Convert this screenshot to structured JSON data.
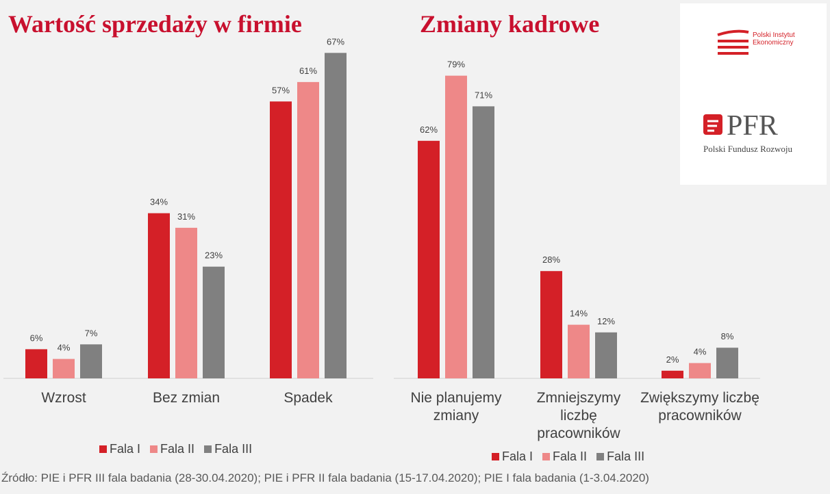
{
  "chart_data": [
    {
      "type": "bar",
      "title": "Wartość sprzedaży w firmie",
      "categories": [
        "Wzrost",
        "Bez zmian",
        "Spadek"
      ],
      "series": [
        {
          "name": "Fala I",
          "color": "#d42027",
          "values": [
            6,
            34,
            57
          ],
          "value_labels": [
            "6%",
            "34%",
            "57%"
          ]
        },
        {
          "name": "Fala II",
          "color": "#ee8888",
          "values": [
            4,
            31,
            61
          ],
          "value_labels": [
            "4%",
            "31%",
            "61%"
          ]
        },
        {
          "name": "Fala III",
          "color": "#808080",
          "values": [
            7,
            23,
            67
          ],
          "value_labels": [
            "7%",
            "23%",
            "67%"
          ]
        }
      ]
    },
    {
      "type": "bar",
      "title": "Zmiany kadrowe",
      "categories": [
        "Nie planujemy zmiany",
        "Zmniejszymy liczbę pracowników",
        "Zwiększymy liczbę pracowników"
      ],
      "series": [
        {
          "name": "Fala I",
          "color": "#d42027",
          "values": [
            62,
            28,
            2
          ],
          "value_labels": [
            "62%",
            "28%",
            "2%"
          ]
        },
        {
          "name": "Fala II",
          "color": "#ee8888",
          "values": [
            79,
            14,
            4
          ],
          "value_labels": [
            "79%",
            "14%",
            "4%"
          ]
        },
        {
          "name": "Fala III",
          "color": "#808080",
          "values": [
            71,
            12,
            8
          ],
          "value_labels": [
            "71%",
            "12%",
            "8%"
          ]
        }
      ]
    }
  ],
  "logos": {
    "pie": "Polski Instytut Ekonomiczny",
    "pfr": "PFR",
    "pfr_name": "Polski Fundusz Rozwoju"
  },
  "source": "Źródło: PIE i PFR III fala badania (28-30.04.2020); PIE i PFR II fala badania (15-17.04.2020); PIE I fala badania (1-3.04.2020)"
}
